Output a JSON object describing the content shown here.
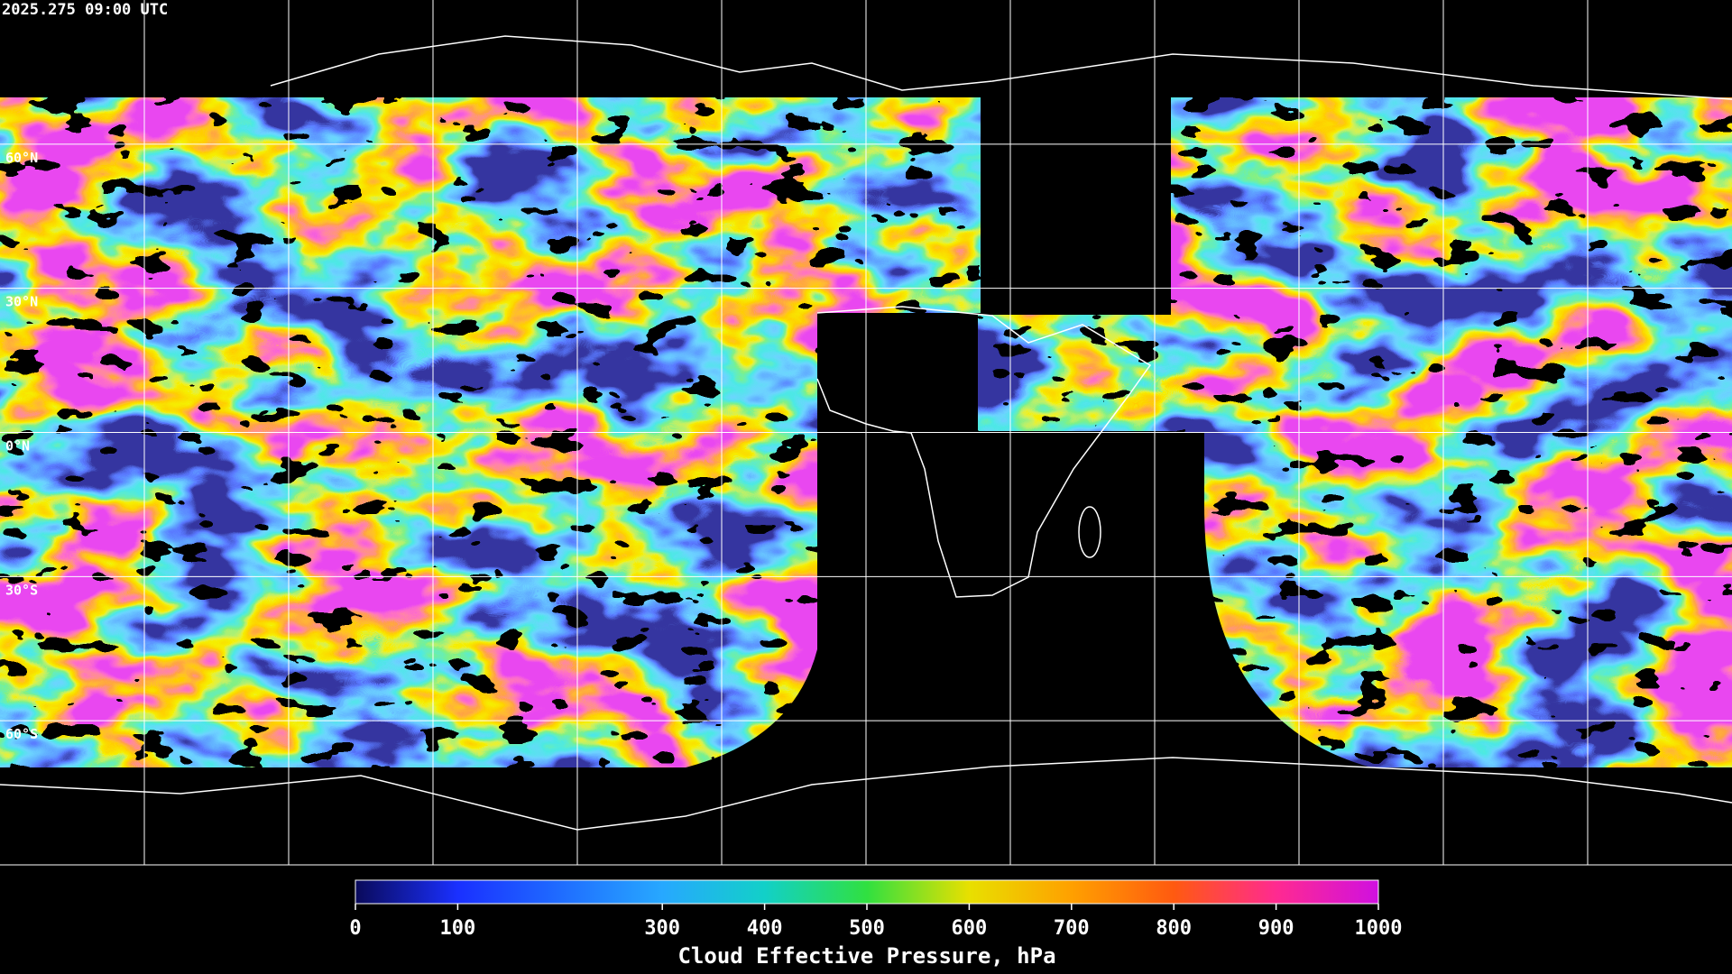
{
  "title": "2025.275 09:00 UTC",
  "latitude_labels": [
    "60°N",
    "30°N",
    "0°N",
    "30°S",
    "60°S"
  ],
  "colorbar": {
    "label": "Cloud Effective Pressure, hPa",
    "range": [
      0,
      1000
    ],
    "ticks": [
      0,
      100,
      300,
      400,
      500,
      600,
      700,
      800,
      900,
      1000
    ],
    "colors": [
      "#0a0a5a",
      "#1a30ff",
      "#1f6cff",
      "#27a8ff",
      "#12d0c8",
      "#30e040",
      "#e8e000",
      "#ffa000",
      "#ff5a10",
      "#ff2a90",
      "#d010e0"
    ]
  }
}
